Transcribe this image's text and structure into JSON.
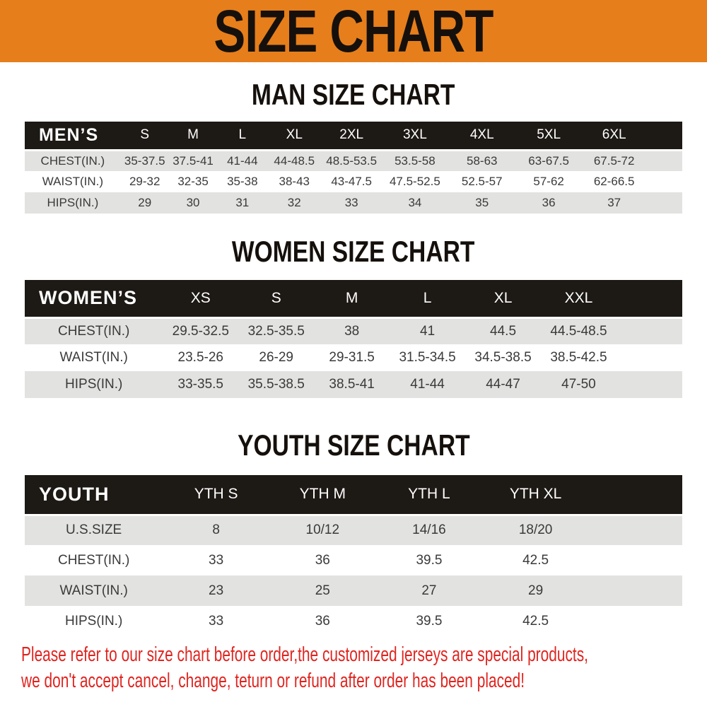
{
  "colors": {
    "banner_bg": "#E67E1B",
    "header_bg": "#1D1915",
    "row_alt_bg": "#E2E2E0",
    "footer_red": "#E0241F"
  },
  "banner": {
    "title": "SIZE CHART"
  },
  "sections": {
    "men": {
      "heading": "MAN SIZE CHART",
      "table": {
        "label": "MEN’S",
        "columns": [
          "S",
          "M",
          "L",
          "XL",
          "2XL",
          "3XL",
          "4XL",
          "5XL",
          "6XL"
        ],
        "rows": [
          {
            "label": "CHEST(IN.)",
            "values": [
              "35-37.5",
              "37.5-41",
              "41-44",
              "44-48.5",
              "48.5-53.5",
              "53.5-58",
              "58-63",
              "63-67.5",
              "67.5-72"
            ]
          },
          {
            "label": "WAIST(IN.)",
            "values": [
              "29-32",
              "32-35",
              "35-38",
              "38-43",
              "43-47.5",
              "47.5-52.5",
              "52.5-57",
              "57-62",
              "62-66.5"
            ]
          },
          {
            "label": "HIPS(IN.)",
            "values": [
              "29",
              "30",
              "31",
              "32",
              "33",
              "34",
              "35",
              "36",
              "37"
            ]
          }
        ]
      }
    },
    "women": {
      "heading": "WOMEN SIZE CHART",
      "table": {
        "label": "WOMEN’S",
        "columns": [
          "XS",
          "S",
          "M",
          "L",
          "XL",
          "XXL"
        ],
        "rows": [
          {
            "label": "CHEST(IN.)",
            "values": [
              "29.5-32.5",
              "32.5-35.5",
              "38",
              "41",
              "44.5",
              "44.5-48.5"
            ]
          },
          {
            "label": "WAIST(IN.)",
            "values": [
              "23.5-26",
              "26-29",
              "29-31.5",
              "31.5-34.5",
              "34.5-38.5",
              "38.5-42.5"
            ]
          },
          {
            "label": "HIPS(IN.)",
            "values": [
              "33-35.5",
              "35.5-38.5",
              "38.5-41",
              "41-44",
              "44-47",
              "47-50"
            ]
          }
        ]
      }
    },
    "youth": {
      "heading": "YOUTH SIZE CHART",
      "table": {
        "label": "YOUTH",
        "columns": [
          "YTH S",
          "YTH M",
          "YTH L",
          "YTH XL"
        ],
        "rows": [
          {
            "label": "U.S.SIZE",
            "values": [
              "8",
              "10/12",
              "14/16",
              "18/20"
            ]
          },
          {
            "label": "CHEST(IN.)",
            "values": [
              "33",
              "36",
              "39.5",
              "42.5"
            ]
          },
          {
            "label": "WAIST(IN.)",
            "values": [
              "23",
              "25",
              "27",
              "29"
            ]
          },
          {
            "label": "HIPS(IN.)",
            "values": [
              "33",
              "36",
              "39.5",
              "42.5"
            ]
          }
        ]
      }
    }
  },
  "footer": {
    "line1": "Please refer to our size chart before order,the customized jerseys are special products,",
    "line2": "we don't accept cancel, change, teturn or refund after order has been placed!"
  }
}
